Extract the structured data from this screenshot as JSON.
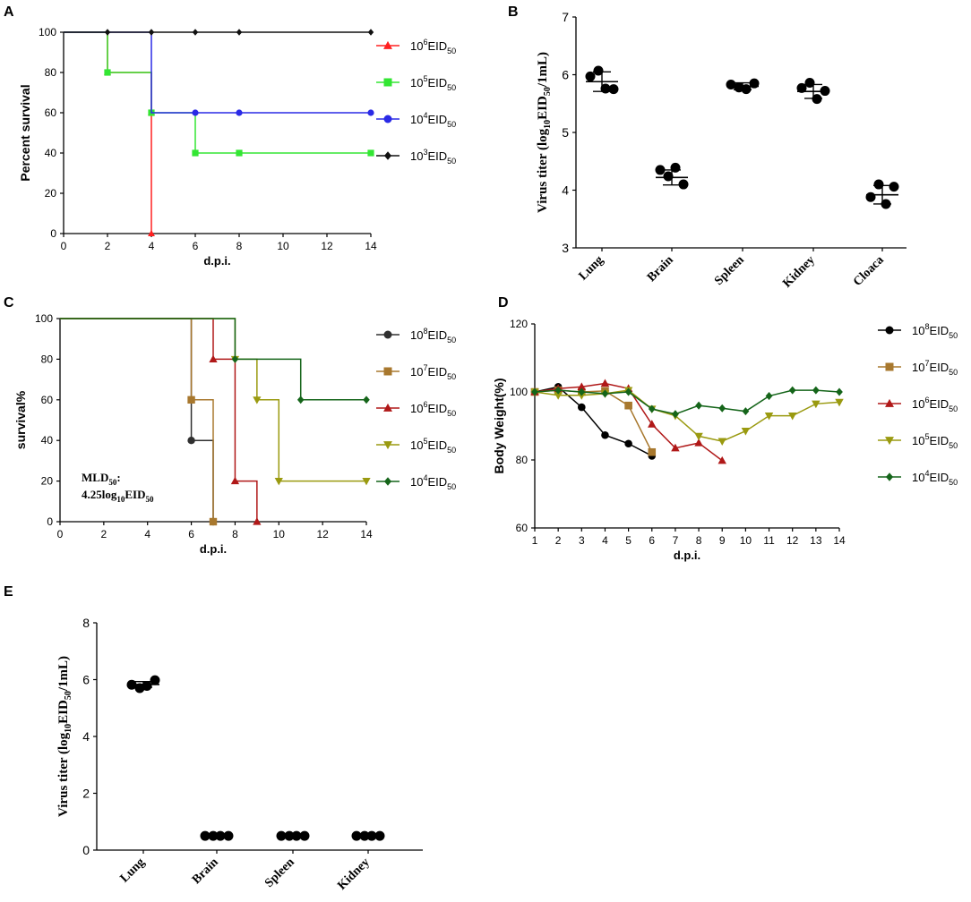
{
  "colors": {
    "A_1e6": "#ff2020",
    "A_1e5": "#33e633",
    "A_1e4": "#2a2ae6",
    "A_1e3": "#111111",
    "C_1e8": "#303030",
    "C_1e7": "#a8782e",
    "C_1e6": "#b01818",
    "C_1e5": "#9a9a10",
    "C_1e4": "#15651a",
    "dot": "#000000"
  },
  "chart_data": [
    {
      "panel": "A",
      "type": "line",
      "step": true,
      "xlabel": "d.p.i.",
      "ylabel": "Percent survival",
      "xlim": [
        0,
        14
      ],
      "ylim": [
        0,
        100
      ],
      "xticks": [
        "0",
        "2",
        "4",
        "6",
        "8",
        "10",
        "12",
        "14"
      ],
      "yticks": [
        "0",
        "20",
        "40",
        "60",
        "80",
        "100"
      ],
      "series": [
        {
          "name": "10^6EID50",
          "base": "10",
          "sup": "6",
          "unit": "EID",
          "sub": "50",
          "color_key": "A_1e6",
          "marker": "triangle-up",
          "steps": [
            [
              0,
              100
            ],
            [
              2,
              80
            ],
            [
              4,
              0
            ]
          ],
          "markers": [
            [
              2,
              80
            ],
            [
              4,
              60
            ],
            [
              4,
              0
            ]
          ]
        },
        {
          "name": "10^5EID50",
          "base": "10",
          "sup": "5",
          "unit": "EID",
          "sub": "50",
          "color_key": "A_1e5",
          "marker": "square",
          "steps": [
            [
              0,
              100
            ],
            [
              2,
              80
            ],
            [
              4,
              60
            ],
            [
              6,
              40
            ],
            [
              14,
              40
            ]
          ],
          "markers": [
            [
              2,
              80
            ],
            [
              4,
              60
            ],
            [
              6,
              40
            ],
            [
              8,
              40
            ],
            [
              14,
              40
            ]
          ]
        },
        {
          "name": "10^4EID50",
          "base": "10",
          "sup": "4",
          "unit": "EID",
          "sub": "50",
          "color_key": "A_1e4",
          "marker": "circle",
          "steps": [
            [
              0,
              100
            ],
            [
              4,
              60
            ],
            [
              14,
              60
            ]
          ],
          "markers": [
            [
              6,
              60
            ],
            [
              8,
              60
            ],
            [
              14,
              60
            ]
          ]
        },
        {
          "name": "10^3EID50",
          "base": "10",
          "sup": "3",
          "unit": "EID",
          "sub": "50",
          "color_key": "A_1e3",
          "marker": "diamond",
          "steps": [
            [
              0,
              100
            ],
            [
              14,
              100
            ]
          ],
          "markers": [
            [
              2,
              100
            ],
            [
              4,
              100
            ],
            [
              6,
              100
            ],
            [
              8,
              100
            ],
            [
              14,
              100
            ]
          ]
        }
      ]
    },
    {
      "panel": "B",
      "type": "scatter",
      "ylabel_main": "Virus titer (log",
      "ylabel_sub": "10",
      "ylabel_mid": "EID",
      "ylabel_sub2": "50",
      "ylabel_end": "/1mL)",
      "ylim": [
        3,
        7
      ],
      "yticks": [
        "3",
        "4",
        "5",
        "6",
        "7"
      ],
      "categories": [
        "Lung",
        "Brain",
        "Spleen",
        "Kidney",
        "Cloaca"
      ],
      "means": [
        5.88,
        4.22,
        5.8,
        5.71,
        3.92
      ],
      "sd": [
        0.17,
        0.13,
        0.06,
        0.12,
        0.16
      ],
      "points": [
        [
          5.97,
          6.07,
          5.76,
          5.75
        ],
        [
          4.35,
          4.24,
          4.39,
          4.1
        ],
        [
          5.83,
          5.78,
          5.75,
          5.85
        ],
        [
          5.77,
          5.86,
          5.58,
          5.72
        ],
        [
          3.88,
          4.1,
          3.76,
          4.06
        ]
      ]
    },
    {
      "panel": "C",
      "type": "line",
      "step": true,
      "xlabel": "d.p.i.",
      "ylabel": "survival%",
      "xlim": [
        0,
        14
      ],
      "ylim": [
        0,
        100
      ],
      "xticks": [
        "0",
        "2",
        "4",
        "6",
        "8",
        "10",
        "12",
        "14"
      ],
      "yticks": [
        "0",
        "20",
        "40",
        "60",
        "80",
        "100"
      ],
      "annotation_main": "MLD",
      "annotation_sub": "50",
      "annotation_colon": ":",
      "annotation_line2": "4.25log",
      "annotation_line2_sub": "10",
      "annotation_line2_end": "EID",
      "annotation_line2_sub2": "50",
      "series": [
        {
          "name": "10^8EID50",
          "base": "10",
          "sup": "8",
          "unit": "EID",
          "sub": "50",
          "color_key": "C_1e8",
          "marker": "circle",
          "steps": [
            [
              0,
              100
            ],
            [
              6,
              40
            ],
            [
              7,
              0
            ]
          ],
          "markers": [
            [
              6,
              40
            ],
            [
              7,
              0
            ]
          ]
        },
        {
          "name": "10^7EID50",
          "base": "10",
          "sup": "7",
          "unit": "EID",
          "sub": "50",
          "color_key": "C_1e7",
          "marker": "square",
          "steps": [
            [
              0,
              100
            ],
            [
              6,
              60
            ],
            [
              7,
              0
            ]
          ],
          "markers": [
            [
              6,
              60
            ],
            [
              7,
              0
            ]
          ]
        },
        {
          "name": "10^6EID50",
          "base": "10",
          "sup": "6",
          "unit": "EID",
          "sub": "50",
          "color_key": "C_1e6",
          "marker": "triangle-up",
          "steps": [
            [
              0,
              100
            ],
            [
              7,
              80
            ],
            [
              8,
              20
            ],
            [
              9,
              0
            ]
          ],
          "markers": [
            [
              7,
              80
            ],
            [
              8,
              20
            ],
            [
              9,
              0
            ]
          ]
        },
        {
          "name": "10^5EID50",
          "base": "10",
          "sup": "5",
          "unit": "EID",
          "sub": "50",
          "color_key": "C_1e5",
          "marker": "triangle-down",
          "steps": [
            [
              0,
              100
            ],
            [
              8,
              80
            ],
            [
              9,
              60
            ],
            [
              10,
              20
            ],
            [
              14,
              20
            ]
          ],
          "markers": [
            [
              8,
              80
            ],
            [
              9,
              60
            ],
            [
              10,
              20
            ],
            [
              14,
              20
            ]
          ]
        },
        {
          "name": "10^4EID50",
          "base": "10",
          "sup": "4",
          "unit": "EID",
          "sub": "50",
          "color_key": "C_1e4",
          "marker": "diamond",
          "steps": [
            [
              0,
              100
            ],
            [
              8,
              80
            ],
            [
              11,
              60
            ],
            [
              14,
              60
            ]
          ],
          "markers": [
            [
              8,
              80
            ],
            [
              11,
              60
            ],
            [
              14,
              60
            ]
          ]
        }
      ]
    },
    {
      "panel": "D",
      "type": "line",
      "xlabel": "d.p.i.",
      "ylabel": "Body Weight(%)",
      "xlim": [
        1,
        14
      ],
      "ylim": [
        60,
        120
      ],
      "xticks": [
        "1",
        "2",
        "3",
        "4",
        "5",
        "6",
        "7",
        "8",
        "9",
        "10",
        "11",
        "12",
        "13",
        "14"
      ],
      "yticks": [
        "60",
        "80",
        "100",
        "120"
      ],
      "series": [
        {
          "name": "10^8EID50",
          "base": "10",
          "sup": "8",
          "unit": "EID",
          "sub": "50",
          "color_key": "dot",
          "marker": "circle",
          "x": [
            1,
            2,
            3,
            4,
            5,
            6
          ],
          "y": [
            100,
            101.5,
            95.5,
            87.3,
            84.8,
            81.2
          ]
        },
        {
          "name": "10^7EID50",
          "base": "10",
          "sup": "7",
          "unit": "EID",
          "sub": "50",
          "color_key": "C_1e7",
          "marker": "square",
          "x": [
            1,
            2,
            3,
            4,
            5,
            6
          ],
          "y": [
            100,
            100.5,
            100,
            100.3,
            96,
            82.3
          ]
        },
        {
          "name": "10^6EID50",
          "base": "10",
          "sup": "6",
          "unit": "EID",
          "sub": "50",
          "color_key": "C_1e6",
          "marker": "triangle-up",
          "x": [
            1,
            2,
            3,
            4,
            5,
            6,
            7,
            8,
            9
          ],
          "y": [
            100,
            101,
            101.5,
            102.5,
            101,
            90.5,
            83.5,
            85,
            79.8
          ]
        },
        {
          "name": "10^5EID50",
          "base": "10",
          "sup": "5",
          "unit": "EID",
          "sub": "50",
          "color_key": "C_1e5",
          "marker": "triangle-down",
          "x": [
            1,
            2,
            3,
            4,
            5,
            6,
            7,
            8,
            9,
            10,
            11,
            12,
            13,
            14
          ],
          "y": [
            100,
            99,
            99,
            99.5,
            100.5,
            95,
            93,
            87,
            85.5,
            88.5,
            93,
            93,
            96.5,
            97
          ]
        },
        {
          "name": "10^4EID50",
          "base": "10",
          "sup": "4",
          "unit": "EID",
          "sub": "50",
          "color_key": "C_1e4",
          "marker": "diamond",
          "x": [
            1,
            2,
            3,
            4,
            5,
            6,
            7,
            8,
            9,
            10,
            11,
            12,
            13,
            14
          ],
          "y": [
            100,
            100.5,
            100,
            99.5,
            100,
            95,
            93.5,
            96,
            95.2,
            94.3,
            98.8,
            100.5,
            100.5,
            100
          ]
        }
      ]
    },
    {
      "panel": "E",
      "type": "scatter",
      "ylabel_main": "Virus titer (log",
      "ylabel_sub": "10",
      "ylabel_mid": "EID",
      "ylabel_sub2": "50",
      "ylabel_end": "/1mL)",
      "ylim": [
        0,
        8
      ],
      "yticks": [
        "0",
        "2",
        "4",
        "6",
        "8"
      ],
      "categories": [
        "Lung",
        "Brain",
        "Spleen",
        "Kidney"
      ],
      "means": [
        5.83,
        0.5,
        0.5,
        0.5
      ],
      "sd": [
        0.1,
        0,
        0,
        0
      ],
      "points": [
        [
          5.82,
          5.7,
          5.78,
          5.98
        ],
        [
          0.5,
          0.5,
          0.5,
          0.5
        ],
        [
          0.5,
          0.5,
          0.5,
          0.5
        ],
        [
          0.5,
          0.5,
          0.5,
          0.5
        ]
      ]
    }
  ],
  "panel_labels": {
    "A": "A",
    "B": "B",
    "C": "C",
    "D": "D",
    "E": "E"
  }
}
